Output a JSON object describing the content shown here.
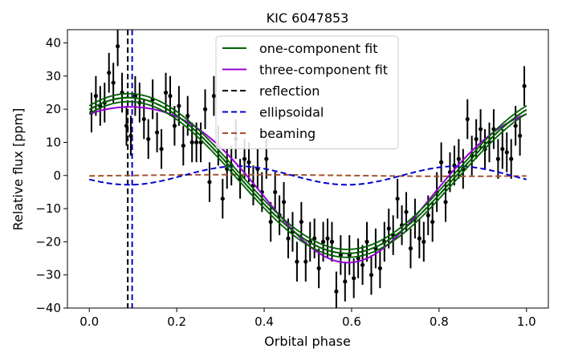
{
  "chart_data": {
    "type": "line",
    "title": "KIC 6047853",
    "xlabel": "Orbital phase",
    "ylabel": "Relative flux [ppm]",
    "xlim": [
      -0.05,
      1.05
    ],
    "ylim": [
      -40,
      44
    ],
    "xticks": [
      "0.0",
      "0.2",
      "0.4",
      "0.6",
      "0.8",
      "1.0"
    ],
    "yticks": [
      "−40",
      "−30",
      "−20",
      "−10",
      "0",
      "10",
      "20",
      "30",
      "40"
    ],
    "grid": false,
    "legend_position": "top-center",
    "vertical_lines": [
      {
        "name": "reflection",
        "x": 0.088,
        "color": "#000000",
        "style": "dashed"
      },
      {
        "name": "ellipsoidal",
        "x": 0.098,
        "color": "#0000cc",
        "style": "dashed"
      }
    ],
    "models": [
      {
        "name": "one-component fit",
        "color": "#006400",
        "style": "solid",
        "components": [
          {
            "kind": "cos",
            "amp": 23.5,
            "period": 1,
            "phase0": 0.09
          }
        ],
        "offset": 0
      },
      {
        "name": "three-component fit",
        "color": "#9400d3",
        "style": "solid",
        "components": [
          {
            "kind": "cos",
            "amp": 23.5,
            "period": 1,
            "phase0": 0.09
          },
          {
            "kind": "cos",
            "amp": -2.8,
            "period": 0.5,
            "phase0": 0.09
          },
          {
            "kind": "sin",
            "amp": 0.25,
            "period": 1,
            "phase0": 0.09
          }
        ],
        "offset": 0
      },
      {
        "name": "reflection",
        "color": "#000000",
        "style": "dashed",
        "components": [
          {
            "kind": "cos",
            "amp": 23.5,
            "period": 1,
            "phase0": 0.09
          }
        ],
        "offset": 0
      },
      {
        "name": "ellipsoidal",
        "color": "#0000cc",
        "style": "dashed",
        "components": [
          {
            "kind": "cos",
            "amp": -2.8,
            "period": 0.5,
            "phase0": 0.09
          }
        ],
        "offset": 0
      },
      {
        "name": "beaming",
        "color": "#a0522d",
        "style": "dashed",
        "components": [
          {
            "kind": "sin",
            "amp": 0.25,
            "period": 1,
            "phase0": 0.09
          }
        ],
        "offset": 0
      }
    ],
    "band_offsets": [
      -1.2,
      1.2
    ],
    "data_points": {
      "name": "data",
      "color": "#000000",
      "x": [
        0.005,
        0.015,
        0.025,
        0.035,
        0.045,
        0.055,
        0.065,
        0.075,
        0.085,
        0.095,
        0.105,
        0.115,
        0.125,
        0.135,
        0.145,
        0.155,
        0.165,
        0.175,
        0.185,
        0.195,
        0.205,
        0.215,
        0.225,
        0.235,
        0.245,
        0.255,
        0.265,
        0.275,
        0.285,
        0.295,
        0.305,
        0.315,
        0.325,
        0.335,
        0.345,
        0.355,
        0.365,
        0.375,
        0.385,
        0.395,
        0.405,
        0.415,
        0.425,
        0.435,
        0.445,
        0.455,
        0.465,
        0.475,
        0.485,
        0.495,
        0.505,
        0.515,
        0.525,
        0.535,
        0.545,
        0.555,
        0.565,
        0.575,
        0.585,
        0.595,
        0.605,
        0.615,
        0.625,
        0.635,
        0.645,
        0.655,
        0.665,
        0.675,
        0.685,
        0.695,
        0.705,
        0.715,
        0.725,
        0.735,
        0.745,
        0.755,
        0.765,
        0.775,
        0.785,
        0.795,
        0.805,
        0.815,
        0.825,
        0.835,
        0.845,
        0.855,
        0.865,
        0.875,
        0.885,
        0.895,
        0.905,
        0.915,
        0.925,
        0.935,
        0.945,
        0.955,
        0.965,
        0.975,
        0.985,
        0.995
      ],
      "y": [
        19,
        24,
        21,
        22,
        31,
        28,
        39,
        25,
        15,
        12,
        24,
        22,
        17,
        11,
        23,
        13,
        8,
        25,
        24,
        15,
        21,
        9,
        18,
        10,
        10,
        10,
        20,
        -2,
        24,
        9,
        -7,
        2,
        3,
        11,
        -1,
        5,
        4,
        -3,
        2,
        -5,
        5,
        -14,
        -5,
        -12,
        -8,
        -19,
        -17,
        -26,
        -14,
        -26,
        -20,
        -19,
        -28,
        -20,
        -19,
        -20,
        -35,
        -24,
        -32,
        -24,
        -31,
        -25,
        -27,
        -20,
        -30,
        -22,
        -28,
        -20,
        -16,
        -18,
        -7,
        -15,
        -11,
        -22,
        -13,
        -19,
        -20,
        -12,
        -14,
        -5,
        4,
        -8,
        1,
        3,
        5,
        2,
        17,
        6,
        11,
        14,
        8,
        10,
        14,
        5,
        8,
        7,
        5,
        15,
        12,
        27
      ],
      "yerr": 6
    }
  }
}
